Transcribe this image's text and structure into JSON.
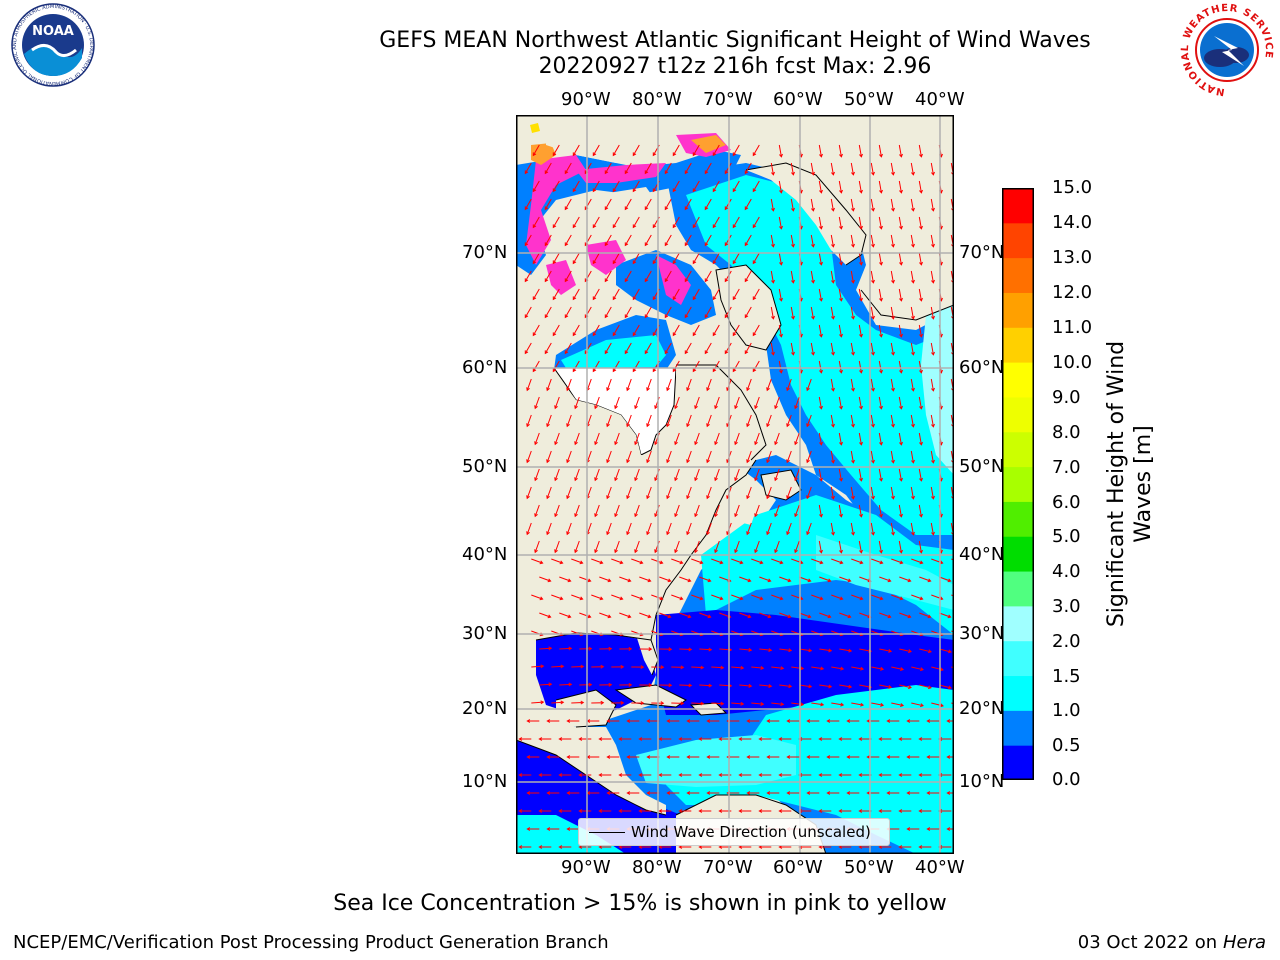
{
  "title": {
    "line1": "GEFS MEAN Northwest Atlantic Significant Height of Wind Waves",
    "line2": "20220927 t12z 216h fcst   Max: 2.96"
  },
  "logos": {
    "noaa_text": "NOAA",
    "noaa_ring_text": "NATIONAL OCEANIC AND ATMOSPHERIC ADMINISTRATION · U.S. DEPARTMENT OF COMMERCE",
    "nws_ring_text": "NATIONAL WEATHER SERVICE"
  },
  "map": {
    "lon_labels": [
      "90°W",
      "80°W",
      "70°W",
      "60°W",
      "50°W",
      "40°W"
    ],
    "lat_labels": [
      "70°N",
      "60°N",
      "50°N",
      "40°N",
      "30°N",
      "20°N",
      "10°N"
    ],
    "legend_label": "Wind Wave Direction (unscaled)",
    "colors": {
      "land": "#efeddc",
      "ice_pink": "#ff33cc",
      "ice_orange": "#ffa030",
      "arrow": "#ff0000",
      "grid": "#b0b0b0"
    }
  },
  "colorbar": {
    "label": "Significant Height of Wind Waves [m]",
    "label_line1": "Significant Height of Wind",
    "label_line2": "Waves [m]",
    "ticks": [
      "15.0",
      "14.0",
      "13.0",
      "12.0",
      "11.0",
      "10.0",
      "9.0",
      "8.0",
      "7.0",
      "6.0",
      "5.0",
      "4.0",
      "3.0",
      "2.0",
      "1.5",
      "1.0",
      "0.5",
      "0.0"
    ],
    "colors_bottom_to_top": [
      "#0000ff",
      "#0080ff",
      "#00ffff",
      "#40ffff",
      "#a0ffff",
      "#50ff80",
      "#00dd00",
      "#50ee00",
      "#a8ff00",
      "#ccff00",
      "#eeff00",
      "#ffff00",
      "#ffd000",
      "#ffa000",
      "#ff7000",
      "#ff4400",
      "#ff0000"
    ]
  },
  "notes": {
    "sea_ice": "Sea Ice Concentration > 15% is shown in pink to yellow"
  },
  "footer": {
    "left": "NCEP/EMC/Verification Post Processing Product Generation Branch",
    "date": "03 Oct 2022 on ",
    "machine": "Hera"
  }
}
